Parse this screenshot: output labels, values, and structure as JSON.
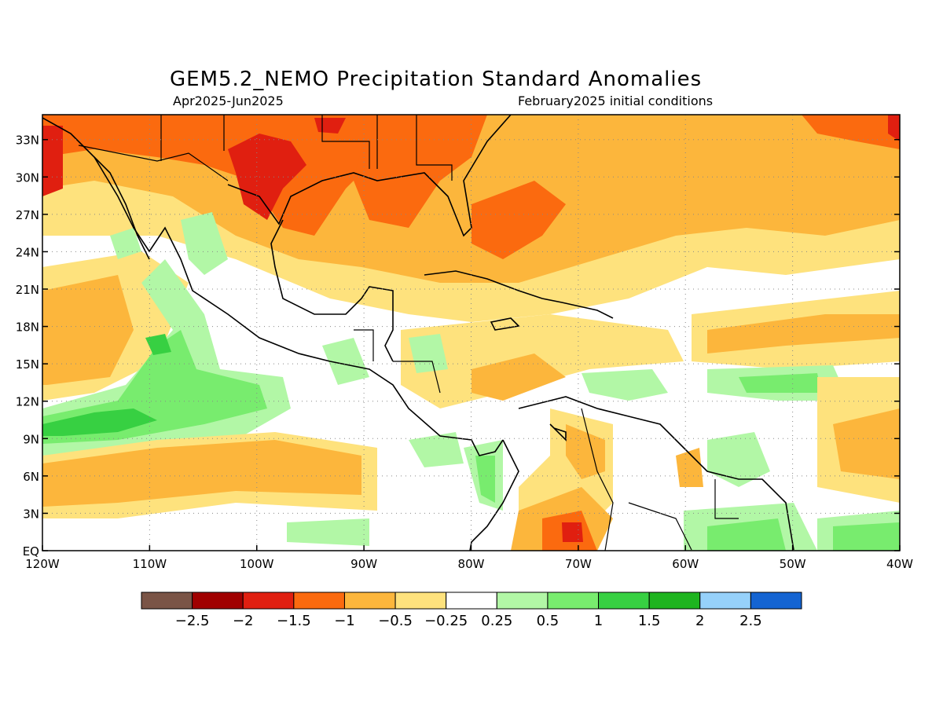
{
  "title": "GEM5.2_NEMO Precipitation Standard Anomalies",
  "period": "Apr2025-Jun2025",
  "initial_conditions": "February2025 initial conditions",
  "map": {
    "lon_range": [
      -120,
      -40
    ],
    "lat_range": [
      0,
      35
    ],
    "lon_ticks": [
      {
        "value": -120,
        "label": "120W"
      },
      {
        "value": -110,
        "label": "110W"
      },
      {
        "value": -100,
        "label": "100W"
      },
      {
        "value": -90,
        "label": "90W"
      },
      {
        "value": -80,
        "label": "80W"
      },
      {
        "value": -70,
        "label": "70W"
      },
      {
        "value": -60,
        "label": "60W"
      },
      {
        "value": -50,
        "label": "50W"
      },
      {
        "value": -40,
        "label": "40W"
      }
    ],
    "lat_ticks": [
      {
        "value": 0,
        "label": "EQ"
      },
      {
        "value": 3,
        "label": "3N"
      },
      {
        "value": 6,
        "label": "6N"
      },
      {
        "value": 9,
        "label": "9N"
      },
      {
        "value": 12,
        "label": "12N"
      },
      {
        "value": 15,
        "label": "15N"
      },
      {
        "value": 18,
        "label": "18N"
      },
      {
        "value": 21,
        "label": "21N"
      },
      {
        "value": 24,
        "label": "24N"
      },
      {
        "value": 27,
        "label": "27N"
      },
      {
        "value": 30,
        "label": "30N"
      },
      {
        "value": 33,
        "label": "33N"
      }
    ],
    "grid": true
  },
  "colorbar": {
    "colors": [
      "#7a5446",
      "#a00000",
      "#e01f10",
      "#fb6a0f",
      "#fcb63c",
      "#fee27d",
      "#ffffff",
      "#b2f7a6",
      "#78ec6e",
      "#37d042",
      "#1eb41f",
      "#96d1fa",
      "#1464d2"
    ],
    "labels": [
      "−2.5",
      "−2",
      "−1.5",
      "−1",
      "−0.5",
      "−0.25",
      "0.25",
      "0.5",
      "1",
      "1.5",
      "2",
      "2.5"
    ]
  }
}
